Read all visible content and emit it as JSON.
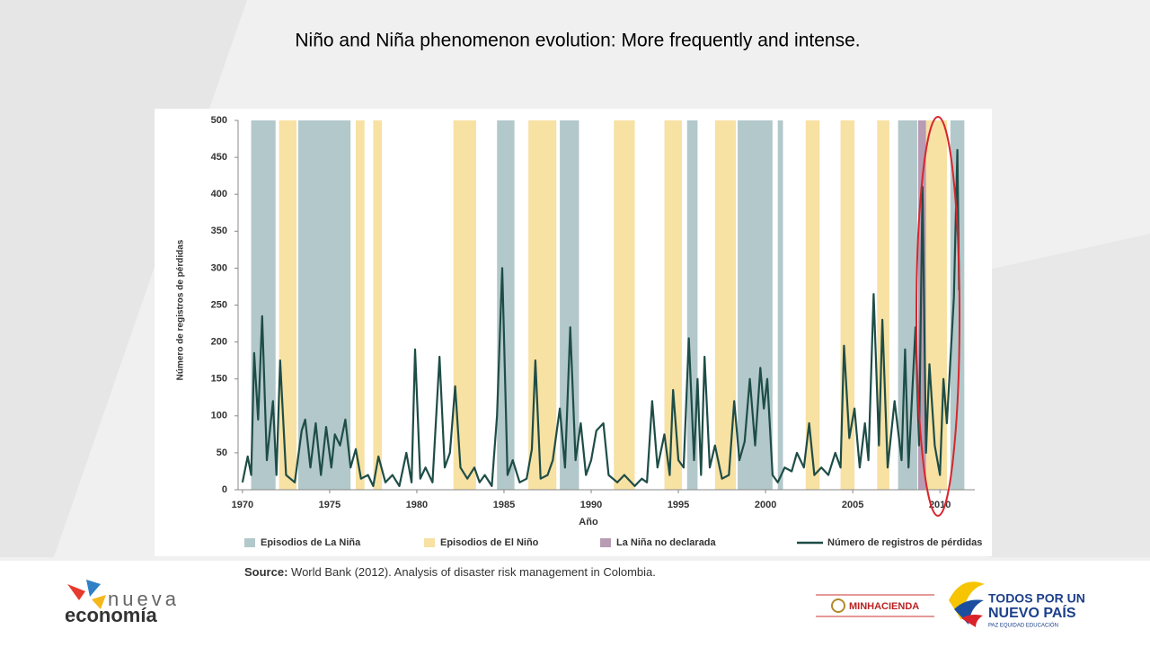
{
  "slide": {
    "title": "Niño and Niña phenomenon evolution: More frequently and intense.",
    "source_label": "Source:",
    "source_text": "World Bank (2012). Analysis of disaster risk management in Colombia.",
    "logo_left_top": "nueva",
    "logo_left_bottom": "economía",
    "logo_mid": "MINHACIENDA",
    "logo_right_top": "TODOS POR UN",
    "logo_right_mid": "NUEVO PAÍS",
    "logo_right_bottom": "PAZ  EQUIDAD  EDUCACIÓN"
  },
  "chart_data": {
    "type": "line",
    "xlabel": "Año",
    "ylabel": "Número de registros de pérdidas",
    "xlim": [
      1969.75,
      2012
    ],
    "xticks": [
      1970,
      1975,
      1980,
      1985,
      1990,
      1995,
      2000,
      2005,
      2010
    ],
    "ylim": [
      0,
      500
    ],
    "yticks": [
      0,
      50,
      100,
      150,
      200,
      250,
      300,
      350,
      400,
      450,
      500
    ],
    "bands": [
      {
        "name": "Episodios de La Niña",
        "color": "#b3c8ca",
        "ranges": [
          [
            1970.5,
            1971.9
          ],
          [
            1973.2,
            1976.2
          ],
          [
            1984.6,
            1985.6
          ],
          [
            1988.2,
            1989.3
          ],
          [
            1995.5,
            1996.1
          ],
          [
            1998.4,
            2000.4
          ],
          [
            2000.7,
            2001.0
          ],
          [
            2007.6,
            2008.7
          ],
          [
            2010.6,
            2011.4
          ]
        ]
      },
      {
        "name": "Episodios de El Niño",
        "color": "#f7e1a3",
        "ranges": [
          [
            1972.1,
            1973.1
          ],
          [
            1976.5,
            1977.0
          ],
          [
            1977.5,
            1978.0
          ],
          [
            1982.1,
            1983.4
          ],
          [
            1986.4,
            1988.0
          ],
          [
            1991.3,
            1992.5
          ],
          [
            1994.2,
            1995.2
          ],
          [
            1997.1,
            1998.3
          ],
          [
            2002.3,
            2003.1
          ],
          [
            2004.3,
            2005.1
          ],
          [
            2006.4,
            2007.1
          ],
          [
            2009.2,
            2010.4
          ]
        ]
      },
      {
        "name": "La Niña no declarada",
        "color": "#b79cb3",
        "ranges": [
          [
            2008.75,
            2009.2
          ]
        ]
      }
    ],
    "series": [
      {
        "name": "Número de registros de pérdidas",
        "color": "#1e4d47",
        "x": [
          1970.0,
          1970.3,
          1970.5,
          1970.67,
          1970.9,
          1971.13,
          1971.4,
          1971.75,
          1971.95,
          1972.16,
          1972.5,
          1973.0,
          1973.4,
          1973.6,
          1973.9,
          1974.2,
          1974.5,
          1974.8,
          1975.1,
          1975.3,
          1975.6,
          1975.9,
          1976.2,
          1976.5,
          1976.8,
          1977.2,
          1977.5,
          1977.8,
          1978.2,
          1978.6,
          1979.0,
          1979.4,
          1979.7,
          1979.9,
          1980.2,
          1980.5,
          1980.9,
          1981.3,
          1981.6,
          1981.9,
          1982.2,
          1982.5,
          1982.9,
          1983.3,
          1983.6,
          1983.9,
          1984.3,
          1984.6,
          1984.9,
          1985.2,
          1985.5,
          1985.9,
          1986.3,
          1986.6,
          1986.8,
          1987.1,
          1987.5,
          1987.8,
          1988.2,
          1988.5,
          1988.8,
          1989.1,
          1989.4,
          1989.7,
          1990.0,
          1990.3,
          1990.7,
          1991.0,
          1991.5,
          1991.9,
          1992.5,
          1992.9,
          1993.2,
          1993.5,
          1993.8,
          1994.2,
          1994.5,
          1994.7,
          1995.0,
          1995.3,
          1995.6,
          1995.9,
          1996.1,
          1996.3,
          1996.5,
          1996.8,
          1997.1,
          1997.5,
          1997.9,
          1998.2,
          1998.5,
          1998.8,
          1999.1,
          1999.4,
          1999.7,
          1999.9,
          2000.1,
          2000.4,
          2000.7,
          2001.1,
          2001.5,
          2001.8,
          2002.2,
          2002.5,
          2002.8,
          2003.2,
          2003.6,
          2004.0,
          2004.3,
          2004.5,
          2004.8,
          2005.1,
          2005.4,
          2005.7,
          2005.9,
          2006.2,
          2006.5,
          2006.7,
          2007.0,
          2007.4,
          2007.8,
          2008.0,
          2008.2,
          2008.6,
          2008.8,
          2009.0,
          2009.2,
          2009.4,
          2009.7,
          2010.0,
          2010.2,
          2010.4,
          2010.6,
          2010.8,
          2011.0,
          2011.1
        ],
        "values": [
          10,
          45,
          20,
          185,
          95,
          235,
          40,
          120,
          20,
          175,
          20,
          10,
          80,
          95,
          30,
          90,
          20,
          85,
          30,
          75,
          60,
          95,
          30,
          55,
          15,
          20,
          5,
          45,
          10,
          20,
          5,
          50,
          10,
          190,
          15,
          30,
          10,
          180,
          30,
          50,
          140,
          30,
          15,
          30,
          10,
          20,
          5,
          100,
          300,
          20,
          40,
          10,
          15,
          55,
          175,
          15,
          20,
          40,
          110,
          30,
          220,
          40,
          90,
          20,
          40,
          80,
          90,
          20,
          10,
          20,
          5,
          15,
          10,
          120,
          30,
          75,
          20,
          135,
          40,
          30,
          205,
          40,
          150,
          20,
          180,
          30,
          60,
          15,
          20,
          120,
          40,
          65,
          150,
          60,
          165,
          110,
          150,
          20,
          10,
          30,
          25,
          50,
          30,
          90,
          20,
          30,
          20,
          50,
          30,
          195,
          70,
          110,
          30,
          90,
          40,
          265,
          60,
          230,
          30,
          120,
          40,
          190,
          30,
          220,
          60,
          410,
          50,
          170,
          60,
          20,
          150,
          90,
          175,
          260,
          460,
          270
        ]
      }
    ]
  }
}
